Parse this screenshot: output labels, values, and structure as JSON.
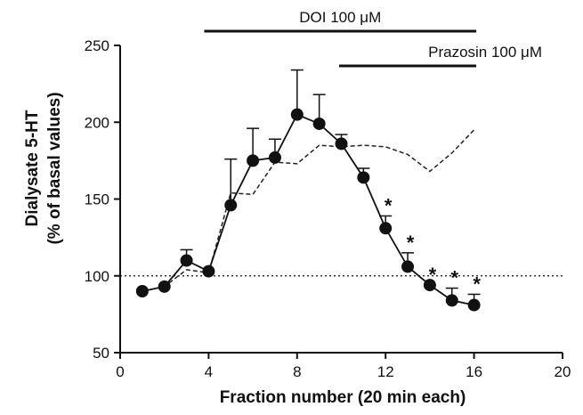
{
  "chart_data": {
    "type": "line",
    "xlabel": "Fraction number (20 min each)",
    "ylabel_line1": "Dialysate 5-HT",
    "ylabel_line2": "(% of basal values)",
    "xlim": [
      0,
      20
    ],
    "ylim": [
      50,
      250
    ],
    "xticks": [
      0,
      4,
      8,
      12,
      16,
      20
    ],
    "yticks": [
      50,
      100,
      150,
      200,
      250
    ],
    "grid": false,
    "baseline": 100,
    "annotations": [
      {
        "label": "DOI 100 μM",
        "x_start": 3.8,
        "x_end": 16.1
      },
      {
        "label": "Prazosin 100 μM",
        "x_start": 9.9,
        "x_end": 16.1
      }
    ],
    "series": [
      {
        "marker": "filled-circle",
        "style": "solid",
        "x": [
          1,
          2,
          3,
          4,
          5,
          6,
          7,
          8,
          9,
          10,
          11,
          12,
          13,
          14,
          15,
          16
        ],
        "y": [
          90,
          93,
          110,
          103,
          146,
          175,
          177,
          205,
          199,
          186,
          164,
          131,
          106,
          94,
          84,
          81
        ],
        "error_upper": [
          0,
          0,
          7,
          0,
          30,
          21,
          12,
          29,
          19,
          6,
          6,
          8,
          9,
          0,
          8,
          7
        ]
      },
      {
        "style": "dashed",
        "x": [
          1,
          2,
          3,
          4,
          5,
          6,
          7,
          8,
          9,
          10,
          11,
          12,
          13,
          14,
          15,
          16
        ],
        "y": [
          90,
          93,
          104,
          102,
          154,
          153,
          174,
          173,
          185,
          184,
          185,
          184,
          179,
          168,
          180,
          195
        ]
      }
    ],
    "significance": {
      "symbol": "*",
      "x": [
        12,
        13,
        14,
        15,
        16
      ]
    }
  }
}
